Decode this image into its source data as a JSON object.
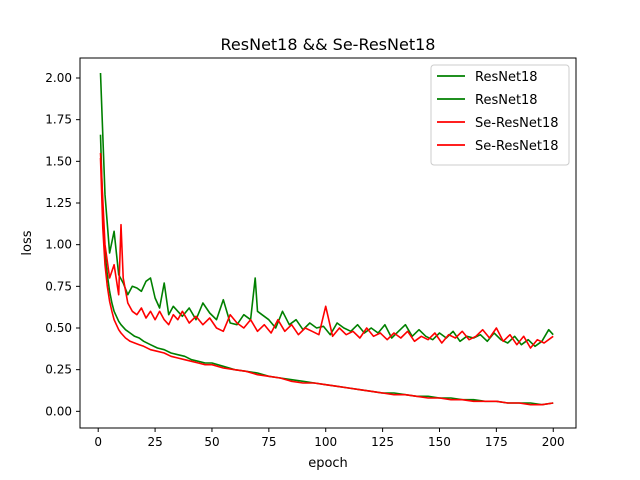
{
  "chart_data": {
    "type": "line",
    "title": "ResNet18 && Se-ResNet18",
    "xlabel": "epoch",
    "ylabel": "loss",
    "xlim": [
      -8,
      210
    ],
    "ylim": [
      -0.1,
      2.12
    ],
    "xticks": [
      0,
      25,
      50,
      75,
      100,
      125,
      150,
      175,
      200
    ],
    "yticks": [
      0.0,
      0.25,
      0.5,
      0.75,
      1.0,
      1.25,
      1.5,
      1.75,
      2.0
    ],
    "grid": false,
    "legend_position": "top-right",
    "series": [
      {
        "name": "ResNet18",
        "color": "#008000",
        "x": [
          1,
          3,
          5,
          7,
          9,
          11,
          13,
          15,
          17,
          19,
          21,
          23,
          25,
          27,
          29,
          31,
          33,
          35,
          37,
          40,
          43,
          46,
          49,
          52,
          55,
          58,
          61,
          64,
          67,
          69,
          70,
          72,
          75,
          78,
          81,
          84,
          87,
          90,
          93,
          96,
          99,
          102,
          105,
          108,
          111,
          114,
          117,
          120,
          123,
          126,
          129,
          132,
          135,
          138,
          141,
          144,
          147,
          150,
          153,
          156,
          159,
          162,
          165,
          168,
          171,
          174,
          177,
          180,
          183,
          186,
          189,
          192,
          195,
          198,
          200
        ],
        "values": [
          2.03,
          1.3,
          0.95,
          1.08,
          0.82,
          0.77,
          0.7,
          0.75,
          0.74,
          0.72,
          0.78,
          0.8,
          0.68,
          0.62,
          0.77,
          0.58,
          0.63,
          0.6,
          0.57,
          0.62,
          0.55,
          0.65,
          0.59,
          0.55,
          0.67,
          0.53,
          0.52,
          0.58,
          0.55,
          0.8,
          0.6,
          0.58,
          0.55,
          0.5,
          0.6,
          0.52,
          0.55,
          0.49,
          0.53,
          0.5,
          0.51,
          0.46,
          0.53,
          0.5,
          0.48,
          0.52,
          0.47,
          0.5,
          0.47,
          0.52,
          0.44,
          0.48,
          0.52,
          0.45,
          0.49,
          0.45,
          0.43,
          0.47,
          0.44,
          0.48,
          0.42,
          0.45,
          0.44,
          0.46,
          0.42,
          0.47,
          0.43,
          0.41,
          0.45,
          0.4,
          0.43,
          0.39,
          0.42,
          0.49,
          0.46
        ]
      },
      {
        "name": "ResNet18",
        "color": "#008000",
        "x": [
          1,
          2,
          3,
          4,
          5,
          6,
          7,
          8,
          9,
          10,
          12,
          14,
          16,
          18,
          20,
          23,
          26,
          29,
          32,
          35,
          38,
          41,
          44,
          47,
          50,
          55,
          60,
          65,
          70,
          75,
          80,
          85,
          90,
          95,
          100,
          105,
          110,
          115,
          120,
          125,
          130,
          135,
          140,
          145,
          150,
          155,
          160,
          165,
          170,
          175,
          180,
          185,
          190,
          195,
          200
        ],
        "values": [
          1.66,
          1.2,
          0.95,
          0.82,
          0.72,
          0.65,
          0.6,
          0.57,
          0.54,
          0.52,
          0.49,
          0.47,
          0.45,
          0.44,
          0.42,
          0.4,
          0.38,
          0.37,
          0.35,
          0.34,
          0.33,
          0.31,
          0.3,
          0.29,
          0.29,
          0.27,
          0.25,
          0.24,
          0.23,
          0.21,
          0.2,
          0.19,
          0.18,
          0.17,
          0.16,
          0.15,
          0.14,
          0.13,
          0.12,
          0.11,
          0.11,
          0.1,
          0.09,
          0.09,
          0.08,
          0.08,
          0.07,
          0.07,
          0.06,
          0.06,
          0.05,
          0.05,
          0.05,
          0.04,
          0.05
        ]
      },
      {
        "name": "Se-ResNet18",
        "color": "#ff0000",
        "x": [
          1,
          3,
          5,
          7,
          9,
          10,
          11,
          13,
          15,
          17,
          19,
          21,
          23,
          25,
          27,
          29,
          31,
          33,
          35,
          37,
          40,
          43,
          46,
          49,
          52,
          55,
          58,
          61,
          64,
          67,
          70,
          73,
          76,
          79,
          82,
          85,
          88,
          91,
          94,
          97,
          100,
          103,
          106,
          109,
          112,
          115,
          118,
          121,
          124,
          127,
          130,
          133,
          136,
          139,
          142,
          145,
          148,
          151,
          154,
          157,
          160,
          163,
          166,
          169,
          172,
          175,
          178,
          181,
          184,
          187,
          190,
          193,
          196,
          200
        ],
        "values": [
          1.55,
          1.0,
          0.8,
          0.88,
          0.7,
          1.12,
          0.8,
          0.65,
          0.6,
          0.58,
          0.62,
          0.56,
          0.6,
          0.55,
          0.6,
          0.55,
          0.52,
          0.58,
          0.55,
          0.6,
          0.53,
          0.57,
          0.52,
          0.56,
          0.5,
          0.48,
          0.58,
          0.53,
          0.5,
          0.55,
          0.48,
          0.52,
          0.47,
          0.55,
          0.48,
          0.52,
          0.46,
          0.5,
          0.48,
          0.46,
          0.63,
          0.45,
          0.5,
          0.46,
          0.48,
          0.44,
          0.5,
          0.45,
          0.47,
          0.43,
          0.47,
          0.44,
          0.48,
          0.42,
          0.45,
          0.43,
          0.47,
          0.41,
          0.46,
          0.44,
          0.48,
          0.43,
          0.45,
          0.49,
          0.44,
          0.5,
          0.42,
          0.46,
          0.4,
          0.45,
          0.38,
          0.43,
          0.41,
          0.45
        ]
      },
      {
        "name": "Se-ResNet18",
        "color": "#ff0000",
        "x": [
          1,
          2,
          3,
          4,
          5,
          6,
          7,
          8,
          9,
          10,
          12,
          14,
          16,
          18,
          20,
          23,
          26,
          29,
          32,
          35,
          38,
          41,
          44,
          47,
          50,
          55,
          60,
          65,
          70,
          75,
          80,
          85,
          90,
          95,
          100,
          105,
          110,
          115,
          120,
          125,
          130,
          135,
          140,
          145,
          150,
          155,
          160,
          165,
          170,
          175,
          180,
          185,
          190,
          195,
          200
        ],
        "values": [
          1.52,
          1.1,
          0.88,
          0.75,
          0.66,
          0.6,
          0.55,
          0.52,
          0.49,
          0.47,
          0.44,
          0.42,
          0.41,
          0.4,
          0.39,
          0.37,
          0.36,
          0.35,
          0.33,
          0.32,
          0.31,
          0.3,
          0.29,
          0.28,
          0.28,
          0.26,
          0.25,
          0.24,
          0.22,
          0.21,
          0.2,
          0.18,
          0.17,
          0.17,
          0.16,
          0.15,
          0.14,
          0.13,
          0.12,
          0.11,
          0.1,
          0.1,
          0.09,
          0.08,
          0.08,
          0.07,
          0.07,
          0.06,
          0.06,
          0.06,
          0.05,
          0.05,
          0.04,
          0.04,
          0.05
        ]
      }
    ]
  }
}
